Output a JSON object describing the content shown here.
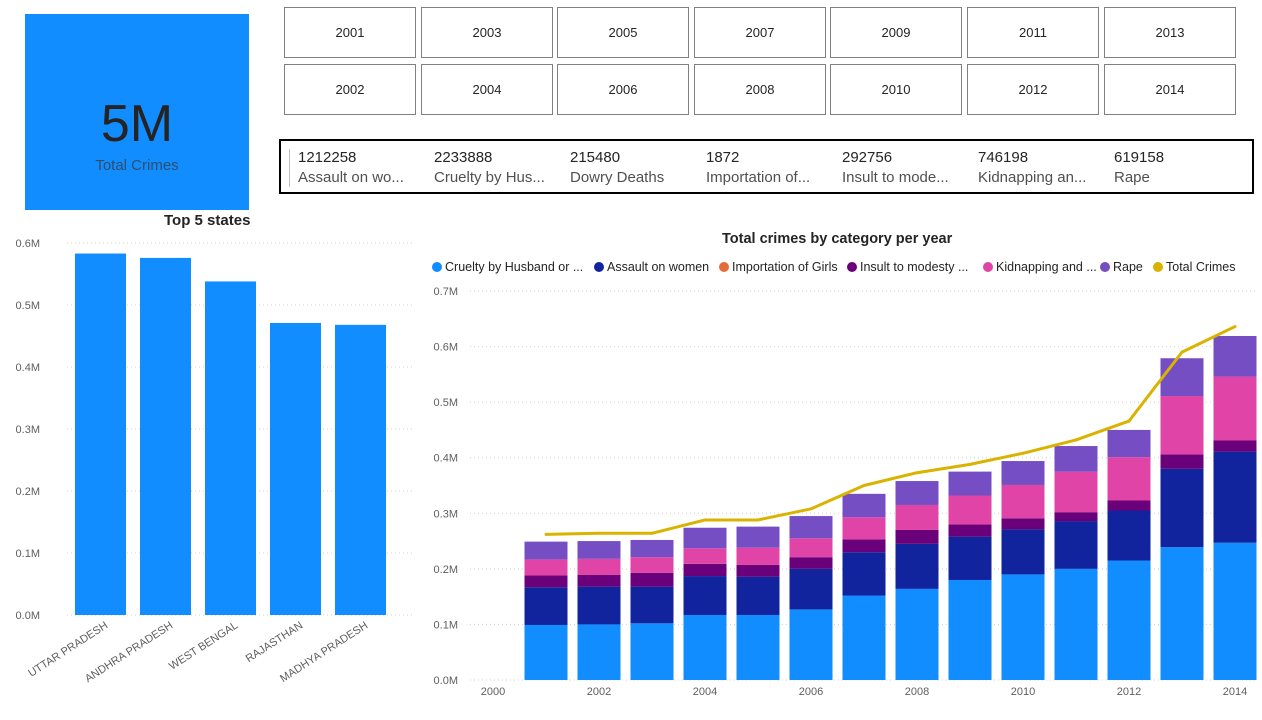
{
  "kpi": {
    "value": "5M",
    "label": "Total Crimes"
  },
  "year_slicer": {
    "row1": [
      "2001",
      "2003",
      "2005",
      "2007",
      "2009",
      "2011",
      "2013"
    ],
    "row2": [
      "2002",
      "2004",
      "2006",
      "2008",
      "2010",
      "2012",
      "2014"
    ]
  },
  "cards": [
    {
      "value": "1212258",
      "label": "Assault on wo..."
    },
    {
      "value": "2233888",
      "label": "Cruelty by Hus..."
    },
    {
      "value": "215480",
      "label": "Dowry Deaths"
    },
    {
      "value": "1872",
      "label": "Importation of..."
    },
    {
      "value": "292756",
      "label": "Insult to mode..."
    },
    {
      "value": "746198",
      "label": "Kidnapping an..."
    },
    {
      "value": "619158",
      "label": "Rape"
    }
  ],
  "colors": {
    "kpi_bg": "#118DFF",
    "cruelty": "#118DFF",
    "assault": "#12239E",
    "importation": "#E66C37",
    "insult": "#6B007B",
    "kidnapping": "#E044A7",
    "rape": "#744EC2",
    "total": "#D9B300"
  },
  "chart_data": [
    {
      "type": "bar",
      "title": "Top 5 states",
      "categories": [
        "UTTAR PRADESH",
        "ANDHRA PRADESH",
        "WEST BENGAL",
        "RAJASTHAN",
        "MADHYA PRADESH"
      ],
      "values": [
        583000,
        576000,
        538000,
        471000,
        468000
      ],
      "ylim": [
        0,
        600000
      ],
      "yticks": [
        "0.0M",
        "0.1M",
        "0.2M",
        "0.3M",
        "0.4M",
        "0.5M",
        "0.6M"
      ],
      "grid": true
    },
    {
      "type": "bar",
      "stacked": true,
      "title": "Total crimes by category per year",
      "legend_position": "top",
      "x": [
        2001,
        2002,
        2003,
        2004,
        2005,
        2006,
        2007,
        2008,
        2009,
        2010,
        2011,
        2012,
        2013,
        2014
      ],
      "xticks": [
        "2000",
        "2002",
        "2004",
        "2006",
        "2008",
        "2010",
        "2012",
        "2014"
      ],
      "yticks": [
        "0.0M",
        "0.1M",
        "0.2M",
        "0.3M",
        "0.4M",
        "0.5M",
        "0.6M",
        "0.7M"
      ],
      "ylim": [
        0,
        700000
      ],
      "grid": true,
      "series": [
        {
          "name": "Cruelty by Husband or ...",
          "color_key": "cruelty",
          "values": [
            99000,
            100000,
            102000,
            117000,
            117000,
            127000,
            152000,
            164000,
            180000,
            190000,
            200000,
            215000,
            239000,
            247000
          ]
        },
        {
          "name": "Assault on women",
          "color_key": "assault",
          "values": [
            68000,
            68000,
            66000,
            70000,
            69000,
            73000,
            78000,
            81000,
            78000,
            81000,
            86000,
            90000,
            141000,
            164000
          ]
        },
        {
          "name": "Importation of Girls",
          "color_key": "importation",
          "values": [
            0,
            0,
            0,
            0,
            0,
            0,
            0,
            0,
            0,
            0,
            0,
            0,
            0,
            0
          ]
        },
        {
          "name": "Insult to modesty ...",
          "color_key": "insult",
          "values": [
            21000,
            21000,
            25000,
            22000,
            21000,
            21000,
            23000,
            25000,
            22000,
            20000,
            16000,
            18000,
            26000,
            20000
          ]
        },
        {
          "name": "Kidnapping and ...",
          "color_key": "kidnapping",
          "values": [
            29000,
            29000,
            28000,
            28000,
            31000,
            34000,
            40000,
            45000,
            52000,
            60000,
            73000,
            78000,
            105000,
            115000
          ]
        },
        {
          "name": "Rape",
          "color_key": "rape",
          "values": [
            32000,
            32000,
            31000,
            37000,
            38000,
            40000,
            42000,
            43000,
            43000,
            43000,
            46000,
            49000,
            68000,
            73000
          ]
        }
      ],
      "line": {
        "name": "Total Crimes",
        "color_key": "total",
        "values": [
          262000,
          264000,
          264000,
          288000,
          288000,
          308000,
          350000,
          373000,
          388000,
          408000,
          432000,
          466000,
          590000,
          636000
        ]
      }
    }
  ]
}
